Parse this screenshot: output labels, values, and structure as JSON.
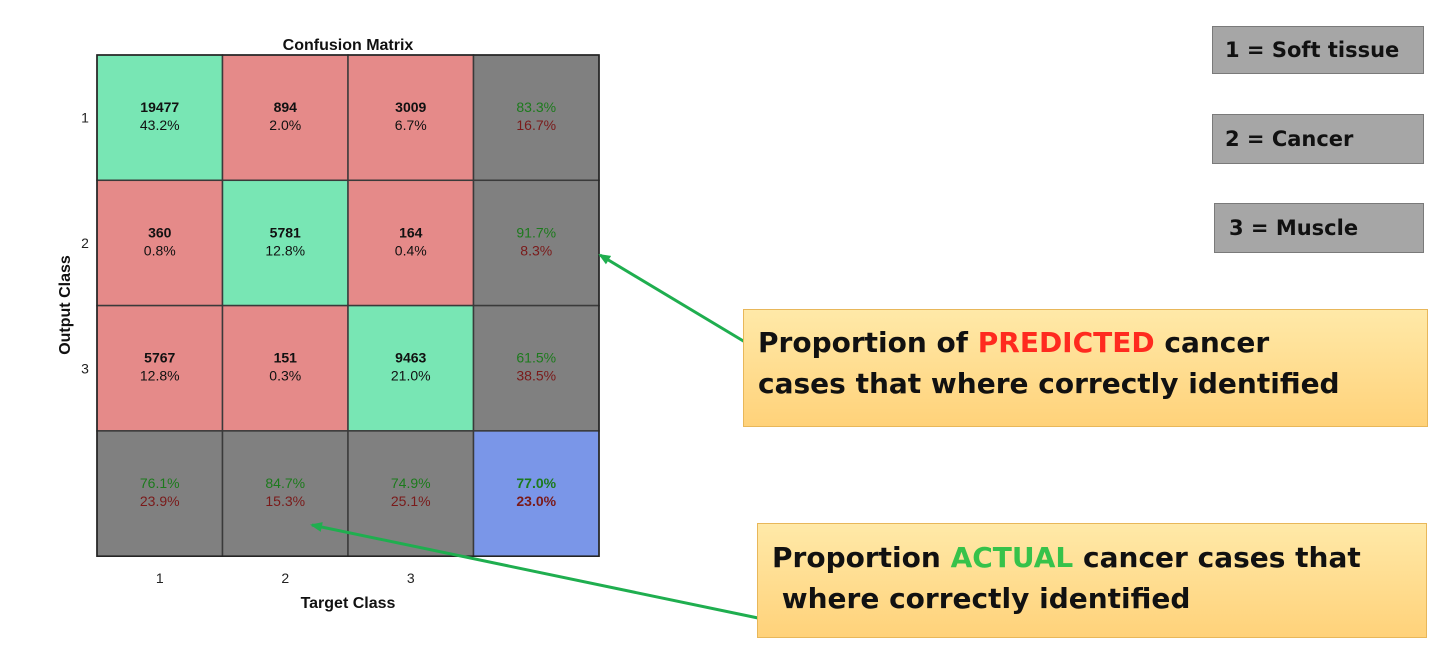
{
  "chart_data": {
    "type": "heatmap",
    "title": "Confusion Matrix",
    "xlabel": "Target Class",
    "ylabel": "Output Class",
    "x_ticks": [
      "1",
      "2",
      "3"
    ],
    "y_ticks": [
      "1",
      "2",
      "3"
    ],
    "matrix": [
      [
        {
          "count": "19477",
          "pct": "43.2%"
        },
        {
          "count": "894",
          "pct": "2.0%"
        },
        {
          "count": "3009",
          "pct": "6.7%"
        }
      ],
      [
        {
          "count": "360",
          "pct": "0.8%"
        },
        {
          "count": "5781",
          "pct": "12.8%"
        },
        {
          "count": "164",
          "pct": "0.4%"
        }
      ],
      [
        {
          "count": "5767",
          "pct": "12.8%"
        },
        {
          "count": "151",
          "pct": "0.3%"
        },
        {
          "count": "9463",
          "pct": "21.0%"
        }
      ]
    ],
    "row_summary": [
      {
        "correct": "83.3%",
        "wrong": "16.7%"
      },
      {
        "correct": "91.7%",
        "wrong": "8.3%"
      },
      {
        "correct": "61.5%",
        "wrong": "38.5%"
      }
    ],
    "col_summary": [
      {
        "correct": "76.1%",
        "wrong": "23.9%"
      },
      {
        "correct": "84.7%",
        "wrong": "15.3%"
      },
      {
        "correct": "74.9%",
        "wrong": "25.1%"
      }
    ],
    "overall": {
      "correct": "77.0%",
      "wrong": "23.0%"
    },
    "colors": {
      "diagonal": "#78e6b4",
      "off_diagonal": "#e58a89",
      "summary": "#808080",
      "overall": "#7a96e8",
      "correct_text": "#1c7a1c",
      "wrong_text": "#7a1a1a"
    }
  },
  "legend": [
    {
      "text": "1 = Soft tissue"
    },
    {
      "text": "2 = Cancer"
    },
    {
      "text": "3  =  Muscle"
    }
  ],
  "callouts": {
    "predicted": {
      "before": "Proportion of ",
      "highlight": "PREDICTED",
      "line1_after": " cancer",
      "line2": "cases that where correctly identified"
    },
    "actual": {
      "before": "Proportion ",
      "highlight": "ACTUAL",
      "line1_after": " cancer cases that",
      "line2": " where correctly identified"
    }
  },
  "arrow_color": "#1fae4f"
}
